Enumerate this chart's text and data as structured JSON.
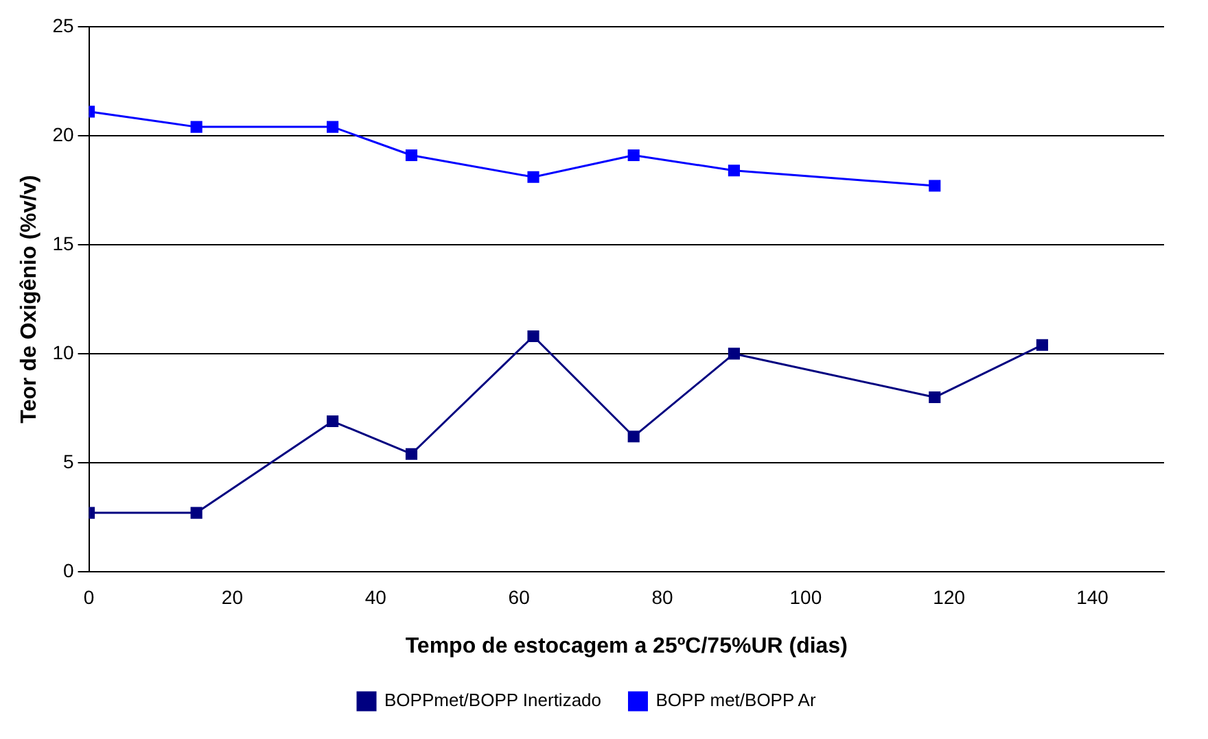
{
  "chart_data": {
    "type": "line",
    "xlabel": "Tempo de estocagem a 25ºC/75%UR (dias)",
    "ylabel": "Teor de Oxigênio (%v/v)",
    "x": [
      0,
      15,
      34,
      45,
      62,
      76,
      90,
      118,
      133
    ],
    "series": [
      {
        "name": "BOPPmet/BOPP Inertizado",
        "color": "#000080",
        "values": [
          2.7,
          2.7,
          6.9,
          5.4,
          10.8,
          6.2,
          10.0,
          8.0,
          10.4
        ]
      },
      {
        "name": "BOPP met/BOPP Ar",
        "color": "#0000ff",
        "x": [
          0,
          15,
          34,
          45,
          62,
          76,
          90,
          118
        ],
        "values": [
          21.1,
          20.4,
          20.4,
          19.1,
          18.1,
          19.1,
          18.4,
          17.7
        ]
      }
    ],
    "xlim": [
      0,
      150
    ],
    "xticks": [
      0,
      20,
      40,
      60,
      80,
      100,
      120,
      140
    ],
    "ylim": [
      0,
      25
    ],
    "yticks": [
      0,
      5,
      10,
      15,
      20,
      25
    ],
    "grid": "y",
    "legend": "bottom",
    "marker": "square",
    "line_style": "solid"
  }
}
